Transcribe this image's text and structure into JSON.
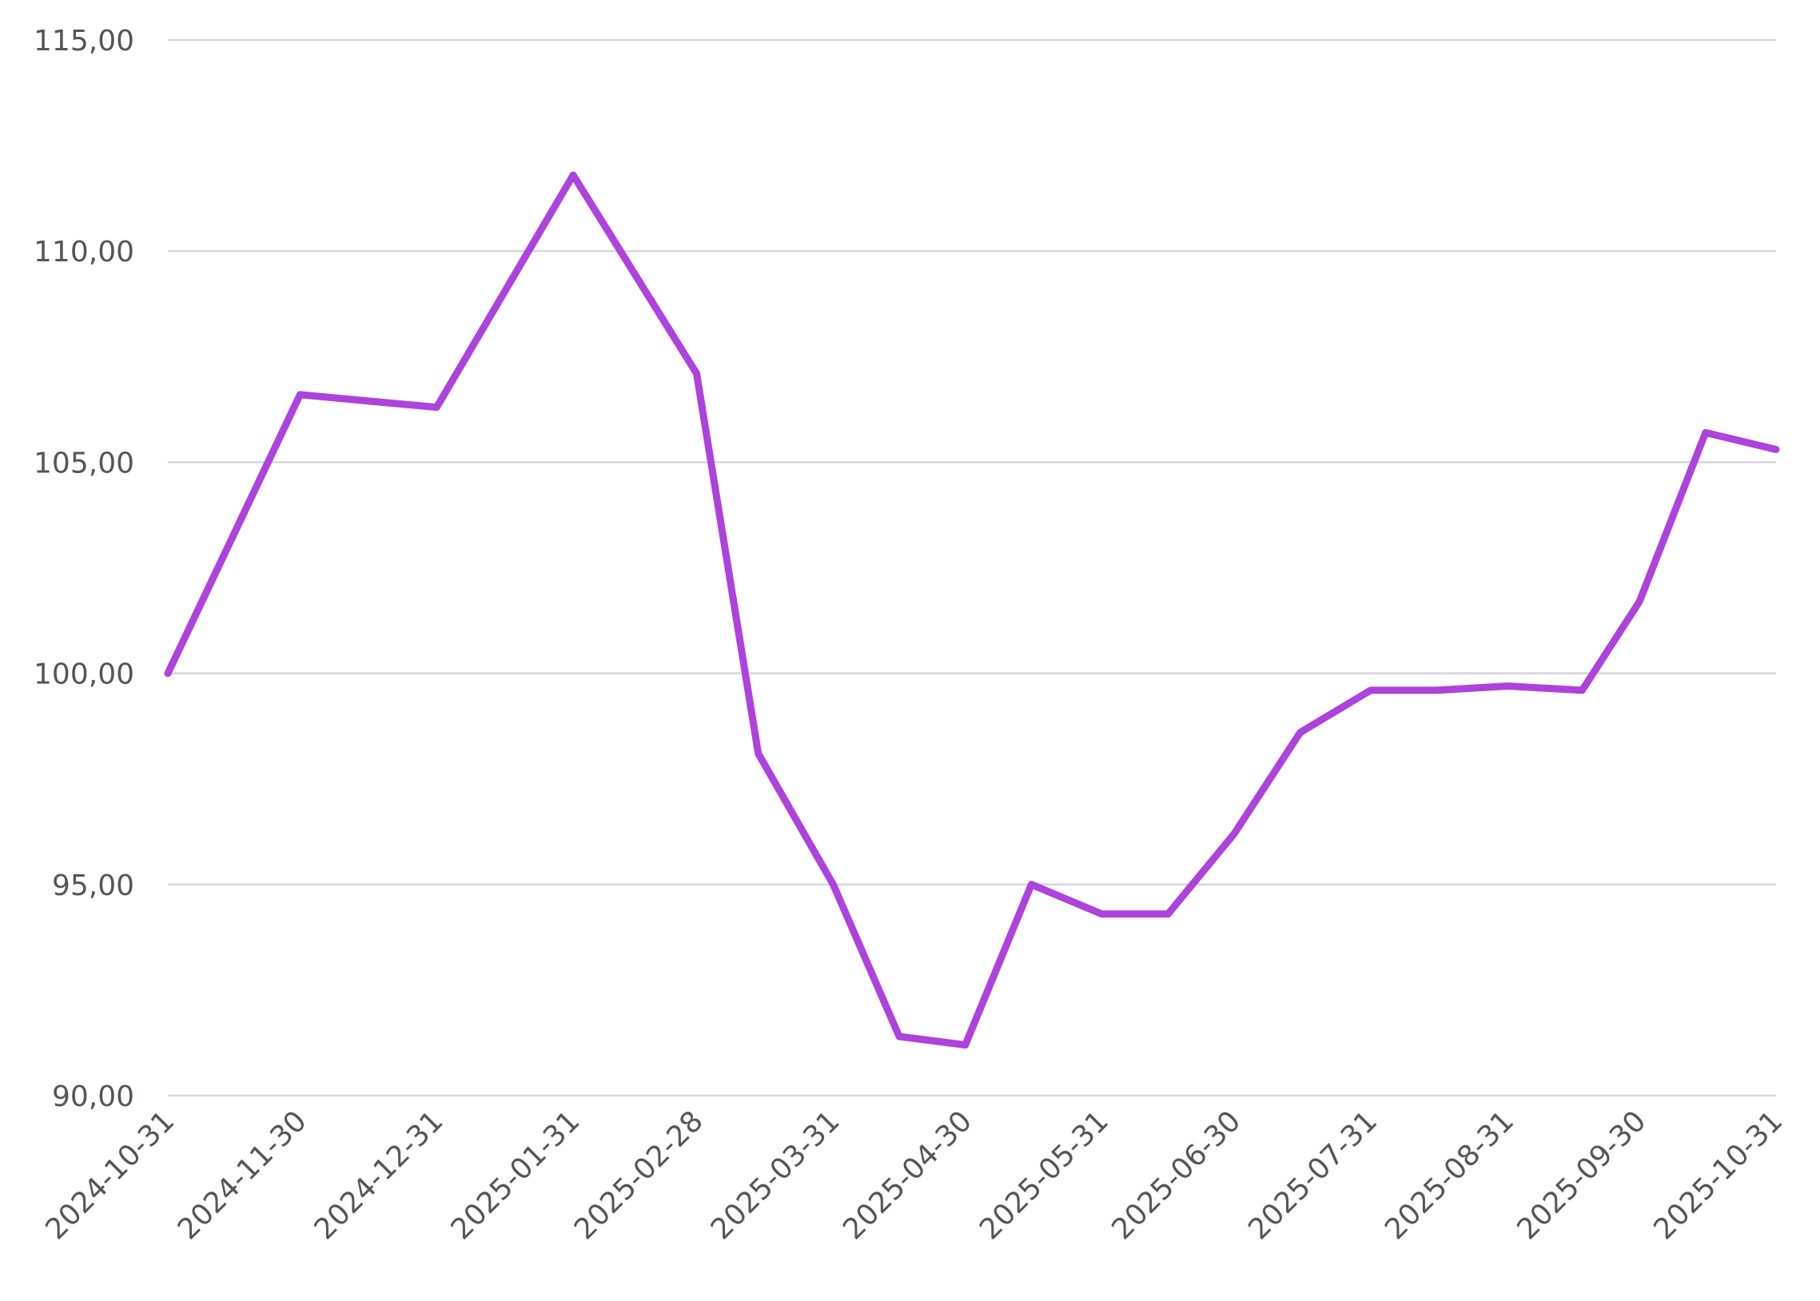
{
  "chart_data": {
    "type": "line",
    "title": "",
    "xlabel": "",
    "ylabel": "",
    "y_tick_values": [
      90,
      95,
      100,
      105,
      110,
      115
    ],
    "y_tick_labels": [
      "90,00",
      "95,00",
      "100,00",
      "105,00",
      "110,00",
      "115,00"
    ],
    "ylim": [
      90,
      115
    ],
    "x_tick_labels": [
      "2024-10-31",
      "2024-11-30",
      "2024-12-31",
      "2025-01-31",
      "2025-02-28",
      "2025-03-31",
      "2025-04-30",
      "2025-05-31",
      "2025-06-30",
      "2025-07-31",
      "2025-08-31",
      "2025-09-30",
      "2025-10-31"
    ],
    "xlim": [
      "2024-10-31",
      "2025-10-31"
    ],
    "grid": true,
    "legend": "none",
    "series": [
      {
        "color": "#ad42dd",
        "points": [
          {
            "x": "2024-10-31",
            "y": 100.0
          },
          {
            "x": "2024-11-30",
            "y": 106.6
          },
          {
            "x": "2024-12-31",
            "y": 106.3
          },
          {
            "x": "2025-01-31",
            "y": 111.8
          },
          {
            "x": "2025-02-28",
            "y": 107.1
          },
          {
            "x": "2025-03-14",
            "y": 98.1
          },
          {
            "x": "2025-03-31",
            "y": 95.0
          },
          {
            "x": "2025-04-15",
            "y": 91.4
          },
          {
            "x": "2025-04-30",
            "y": 91.2
          },
          {
            "x": "2025-05-15",
            "y": 95.0
          },
          {
            "x": "2025-05-31",
            "y": 94.3
          },
          {
            "x": "2025-06-15",
            "y": 94.3
          },
          {
            "x": "2025-06-30",
            "y": 96.2
          },
          {
            "x": "2025-07-15",
            "y": 98.6
          },
          {
            "x": "2025-07-31",
            "y": 99.6
          },
          {
            "x": "2025-08-15",
            "y": 99.6
          },
          {
            "x": "2025-08-31",
            "y": 99.7
          },
          {
            "x": "2025-09-17",
            "y": 99.6
          },
          {
            "x": "2025-09-30",
            "y": 101.7
          },
          {
            "x": "2025-10-15",
            "y": 105.7
          },
          {
            "x": "2025-10-31",
            "y": 105.3
          }
        ]
      }
    ]
  }
}
